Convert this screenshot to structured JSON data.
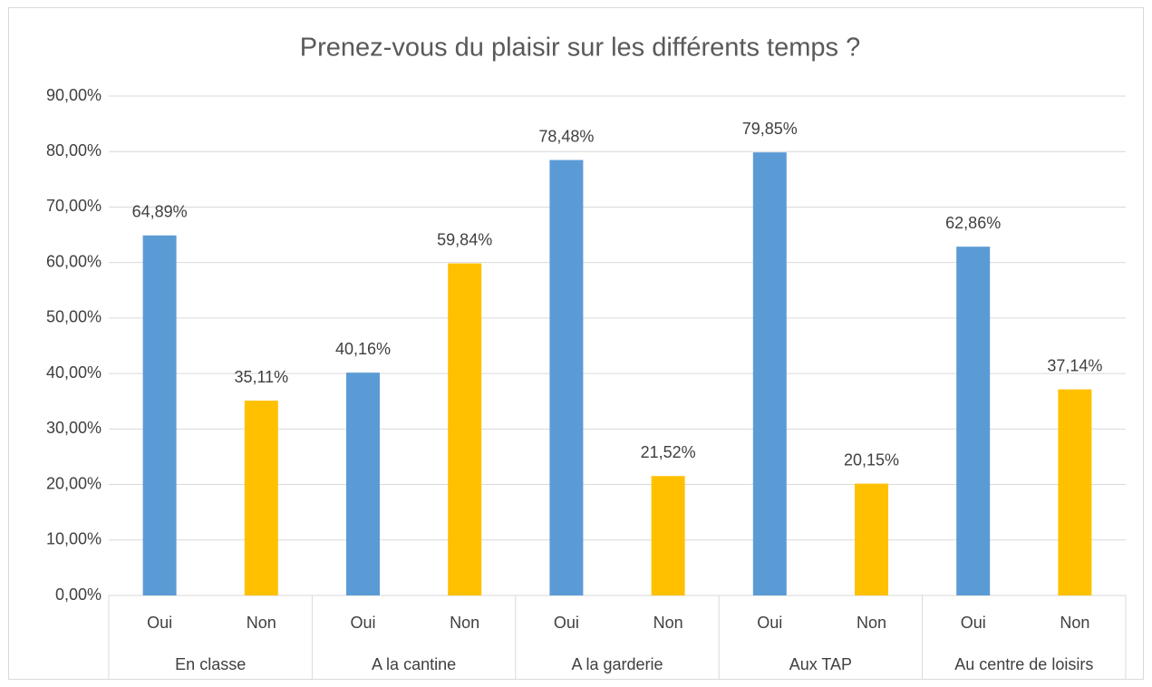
{
  "chart_data": {
    "type": "bar",
    "title": "Prenez-vous du plaisir sur les différents temps ?",
    "categories": [
      "Oui",
      "Non",
      "Oui",
      "Non",
      "Oui",
      "Non",
      "Oui",
      "Non",
      "Oui",
      "Non"
    ],
    "groups": [
      "En classe",
      "A la cantine",
      "A la garderie",
      "Aux TAP",
      "Au centre de loisirs"
    ],
    "values": [
      64.89,
      35.11,
      40.16,
      59.84,
      78.48,
      21.52,
      79.85,
      20.15,
      62.86,
      37.14
    ],
    "value_labels": [
      "64,89%",
      "35,11%",
      "40,16%",
      "59,84%",
      "78,48%",
      "21,52%",
      "79,85%",
      "20,15%",
      "62,86%",
      "37,14%"
    ],
    "colors": [
      "#5b9bd5",
      "#ffc000",
      "#5b9bd5",
      "#ffc000",
      "#5b9bd5",
      "#ffc000",
      "#5b9bd5",
      "#ffc000",
      "#5b9bd5",
      "#ffc000"
    ],
    "ylim": [
      0,
      90
    ],
    "yticks": [
      {
        "value": 0,
        "label": "0,00%"
      },
      {
        "value": 10,
        "label": "10,00%"
      },
      {
        "value": 20,
        "label": "20,00%"
      },
      {
        "value": 30,
        "label": "30,00%"
      },
      {
        "value": 40,
        "label": "40,00%"
      },
      {
        "value": 50,
        "label": "50,00%"
      },
      {
        "value": 60,
        "label": "60,00%"
      },
      {
        "value": 70,
        "label": "70,00%"
      },
      {
        "value": 80,
        "label": "80,00%"
      },
      {
        "value": 90,
        "label": "90,00%"
      }
    ],
    "grid": true
  }
}
